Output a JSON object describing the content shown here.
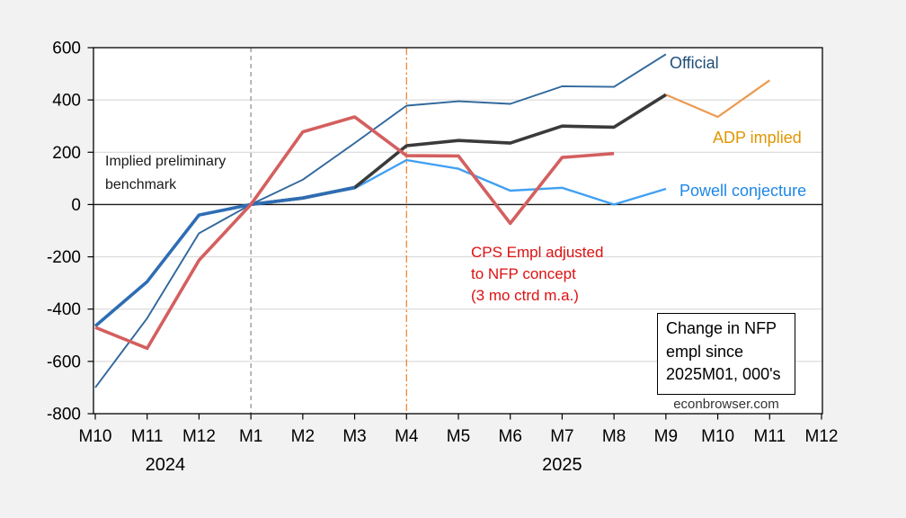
{
  "chart_data": {
    "type": "line",
    "title": "Change in NFP empl since 2025M01, 000's",
    "source": "econbrowser.com",
    "x_labels": [
      "M10",
      "M11",
      "M12",
      "M1",
      "M2",
      "M3",
      "M4",
      "M5",
      "M6",
      "M7",
      "M8",
      "M9",
      "M10",
      "M11",
      "M12"
    ],
    "x_years": [
      {
        "text": "2024",
        "month_index": 1.35
      },
      {
        "text": "2025",
        "month_index": 9.0
      }
    ],
    "y_axis": {
      "min": -800,
      "max": 600,
      "tick_step": 200,
      "tick_labels": [
        "600",
        "400",
        "200",
        "0",
        "-200",
        "-400",
        "-600",
        "-800"
      ],
      "gridlines": [
        400,
        200,
        -200,
        -400,
        -600
      ],
      "zero_line": 0,
      "grid_color": "#d4d4d4"
    },
    "vlines": [
      {
        "month_index": 3,
        "color": "#8a8a8a",
        "style": "dash",
        "note": "2025M01"
      },
      {
        "month_index": 6,
        "color": "#ee7d23",
        "style": "dashdot",
        "note": "2025M04"
      }
    ],
    "series": [
      {
        "id": "official",
        "name": "Official",
        "color": "#30679c",
        "width": 1.9,
        "start_index": 0,
        "values": [
          -700,
          -435,
          -110,
          0,
          95,
          235,
          378,
          395,
          385,
          452,
          450,
          575
        ]
      },
      {
        "id": "adp-implied",
        "name": "ADP implied",
        "color": "#eb9a50",
        "width": 2.2,
        "start_index": 11,
        "values": [
          420,
          335,
          475
        ]
      },
      {
        "id": "powell-conjecture",
        "name": "Powell conjecture",
        "color": "#41a0f2",
        "width": 2.4,
        "start_index": 3,
        "values": [
          0,
          25,
          62,
          170,
          137,
          53,
          64,
          0,
          60
        ]
      },
      {
        "id": "implied-benchmark",
        "name": "Implied preliminary benchmark",
        "color": "#3a3a3a",
        "width": 3.6,
        "start_index": 3,
        "values": [
          0,
          25,
          65,
          225,
          245,
          235,
          300,
          296,
          420
        ]
      },
      {
        "id": "implied-benchmark-2024",
        "name": "Implied preliminary benchmark (2024 segment)",
        "color": "#2e6db4",
        "width": 3.6,
        "start_index": 0,
        "values": [
          -465,
          -295,
          -40,
          0,
          25,
          65
        ]
      },
      {
        "id": "cps-adjusted",
        "name": "CPS Empl adjusted to NFP concept (3 mo ctrd m.a.)",
        "color": "#d45f5f",
        "width": 3.6,
        "start_index": 0,
        "values": [
          -470,
          -550,
          -213,
          0,
          278,
          335,
          187,
          186,
          -72,
          180,
          195
        ]
      }
    ],
    "annotations": {
      "benchmark_label": {
        "lines": [
          "Implied preliminary",
          "benchmark"
        ],
        "color": "#1a1a1a"
      },
      "cps_label": {
        "lines": [
          "CPS Empl adjusted",
          "to NFP concept",
          "(3 mo ctrd m.a.)"
        ],
        "color": "#dd1111"
      },
      "official_label": {
        "text": "Official",
        "color": "#1f4e79"
      },
      "adp_label": {
        "text": "ADP implied",
        "color": "#e09600"
      },
      "powell_label": {
        "text": "Powell conjecture",
        "color": "#1e87e5"
      }
    },
    "info_box": {
      "lines": [
        "Change in NFP",
        "empl since",
        "2025M01, 000's"
      ]
    }
  }
}
